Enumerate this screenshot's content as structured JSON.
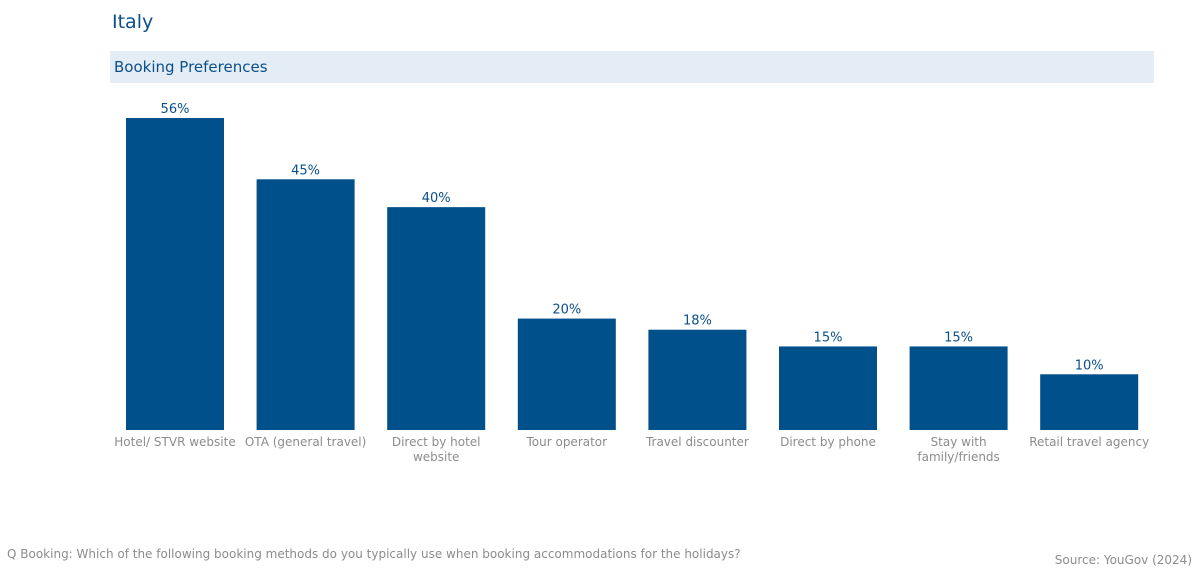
{
  "header": {
    "country": "Italy",
    "section_title": "Booking Preferences"
  },
  "colors": {
    "bar": "#00508c",
    "title": "#0b4f8a",
    "band": "#e4edf5",
    "muted_text": "#8c8c8c"
  },
  "chart_data": {
    "type": "bar",
    "title": "Booking Preferences",
    "categories": [
      "Hotel/ STVR website",
      "OTA (general travel)",
      "Direct by hotel website",
      "Tour operator",
      "Travel discounter",
      "Direct by phone",
      "Stay with family/friends",
      "Retail travel agency"
    ],
    "category_lines": [
      [
        "Hotel/ STVR website"
      ],
      [
        "OTA (general travel)"
      ],
      [
        "Direct by hotel",
        "website"
      ],
      [
        "Tour operator"
      ],
      [
        "Travel discounter"
      ],
      [
        "Direct by phone"
      ],
      [
        "Stay with",
        "family/friends"
      ],
      [
        "Retail travel agency"
      ]
    ],
    "values": [
      56,
      45,
      40,
      20,
      18,
      15,
      15,
      10
    ],
    "value_labels": [
      "56%",
      "45%",
      "40%",
      "20%",
      "18%",
      "15%",
      "15%",
      "10%"
    ],
    "unit": "%",
    "xlabel": "",
    "ylabel": "",
    "ylim": [
      0,
      56
    ],
    "grid": false,
    "legend": false
  },
  "footer": {
    "question": "Q Booking: Which of the following booking methods do you typically use when booking accommodations for the holidays?",
    "source": "Source: YouGov (2024)"
  }
}
